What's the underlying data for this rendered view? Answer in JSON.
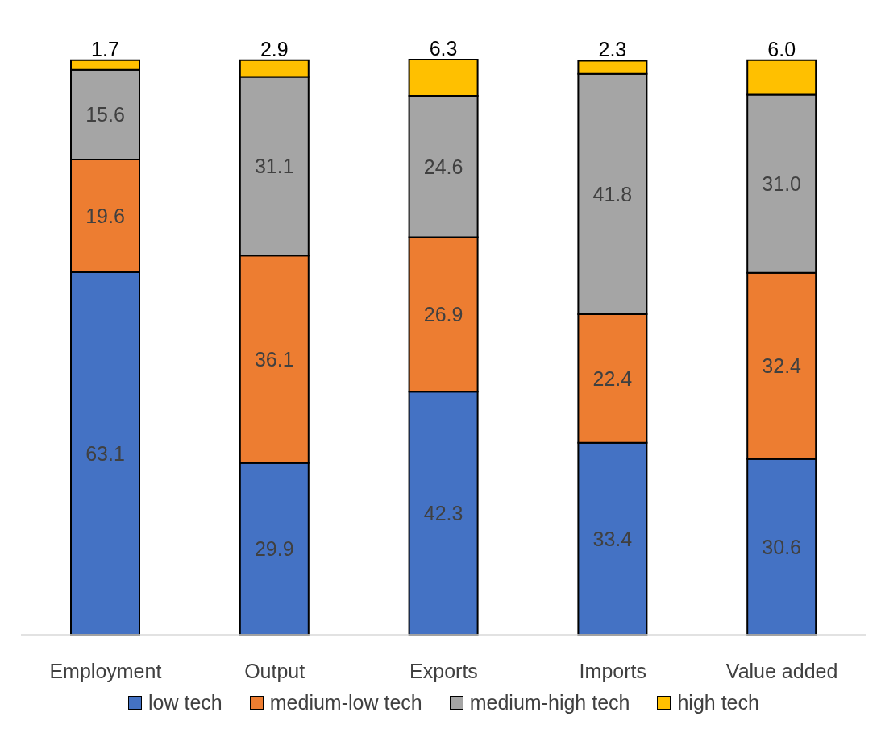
{
  "chart_data": {
    "type": "bar",
    "stacked": true,
    "categories": [
      "Employment",
      "Output",
      "Exports",
      "Imports",
      "Value added"
    ],
    "series": [
      {
        "name": "low tech",
        "color": "#4472c4",
        "values": [
          63.1,
          29.9,
          42.3,
          33.4,
          30.6
        ],
        "value_labels": [
          "63.1",
          "29.9",
          "42.3",
          "33.4",
          "30.6"
        ]
      },
      {
        "name": "medium-low tech",
        "color": "#ed7d31",
        "values": [
          19.6,
          36.1,
          26.9,
          22.4,
          32.4
        ],
        "value_labels": [
          "19.6",
          "36.1",
          "26.9",
          "22.4",
          "32.4"
        ]
      },
      {
        "name": "medium-high tech",
        "color": "#a5a5a5",
        "values": [
          15.6,
          31.1,
          24.6,
          41.8,
          31.0
        ],
        "value_labels": [
          "15.6",
          "31.1",
          "24.6",
          "41.8",
          "31.0"
        ]
      },
      {
        "name": "high tech",
        "color": "#ffc000",
        "values": [
          1.7,
          2.9,
          6.3,
          2.3,
          6.0
        ],
        "value_labels": [
          "1.7",
          "2.9",
          "6.3",
          "2.3",
          "6.0"
        ]
      }
    ],
    "legend": "bottom",
    "grid": false
  }
}
